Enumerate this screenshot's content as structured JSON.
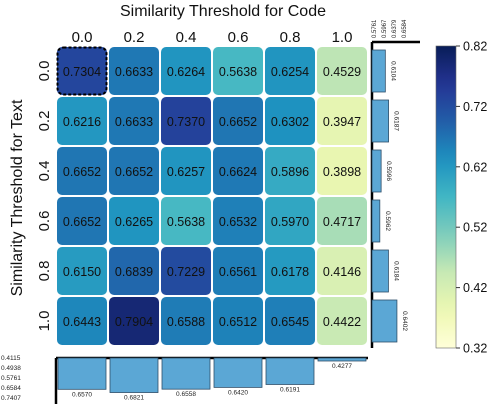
{
  "chart_data": {
    "type": "heatmap",
    "title": "Similarity Threshold for Code",
    "xlabel": "Similarity Threshold for Code",
    "ylabel": "Similarity Threshold for Text",
    "x_categories": [
      "0.0",
      "0.2",
      "0.4",
      "0.6",
      "0.8",
      "1.0"
    ],
    "y_categories": [
      "0.0",
      "0.2",
      "0.4",
      "0.6",
      "0.8",
      "1.0"
    ],
    "values": [
      [
        0.7304,
        0.6633,
        0.6264,
        0.5638,
        0.6254,
        0.4529
      ],
      [
        0.6216,
        0.6633,
        0.737,
        0.6652,
        0.6302,
        0.3947
      ],
      [
        0.6652,
        0.6652,
        0.6257,
        0.6624,
        0.5896,
        0.3898
      ],
      [
        0.6652,
        0.6265,
        0.5638,
        0.6532,
        0.597,
        0.4717
      ],
      [
        0.615,
        0.6839,
        0.7229,
        0.6561,
        0.6178,
        0.4146
      ],
      [
        0.6443,
        0.7904,
        0.6588,
        0.6512,
        0.6545,
        0.4422
      ]
    ],
    "highlight_cell": {
      "row": 0,
      "col": 0
    },
    "colorbar": {
      "ticks": [
        "0.32",
        "0.42",
        "0.52",
        "0.62",
        "0.72",
        "0.82"
      ],
      "range": [
        0.32,
        0.82
      ],
      "colormap": "YlGnBu"
    },
    "row_marginal": {
      "values": [
        0.6104,
        0.6187,
        0.5996,
        0.5962,
        0.6184,
        0.6402
      ],
      "labels": [
        "0.6104",
        "0.6187",
        "0.5996",
        "0.5962",
        "0.6184",
        "0.6402"
      ],
      "axis_ticks": [
        "0.5761",
        "0.5967",
        "0.6379",
        "0.6584"
      ]
    },
    "col_marginal": {
      "values": [
        0.657,
        0.6821,
        0.6558,
        0.642,
        0.6191,
        0.4277
      ],
      "labels": [
        "0.6570",
        "0.6821",
        "0.6558",
        "0.6420",
        "0.6191",
        "0.4277"
      ],
      "axis_ticks": [
        "0.4115",
        "0.4938",
        "0.5761",
        "0.6584",
        "0.7407"
      ]
    },
    "colors": {
      "bar_fill": "#5ba7d5",
      "bar_stroke": "#2f4f6a",
      "cell_text": "#111111"
    }
  }
}
